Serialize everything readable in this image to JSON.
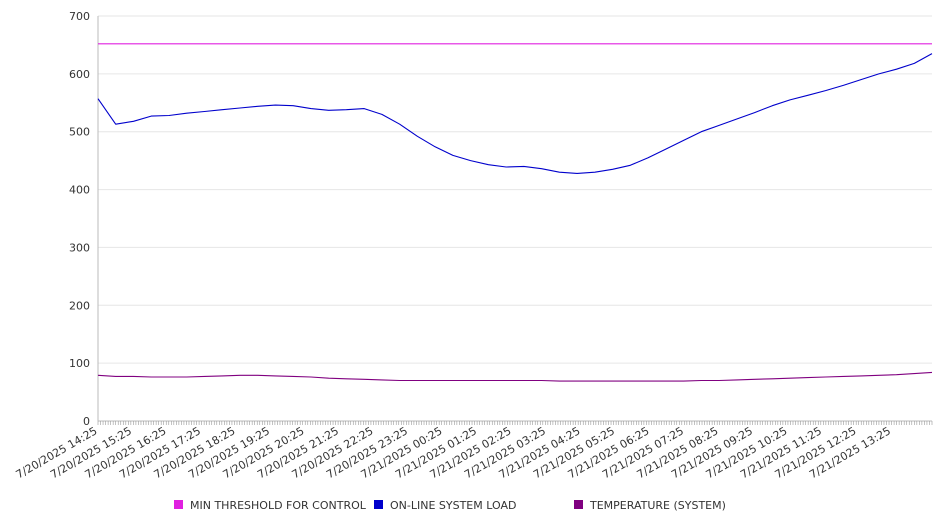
{
  "chart_data": {
    "type": "line",
    "x_ticks": [
      "7/20/2025 14:25",
      "7/20/2025 15:25",
      "7/20/2025 16:25",
      "7/20/2025 17:25",
      "7/20/2025 18:25",
      "7/20/2025 19:25",
      "7/20/2025 20:25",
      "7/20/2025 21:25",
      "7/20/2025 22:25",
      "7/20/2025 23:25",
      "7/21/2025 00:25",
      "7/21/2025 01:25",
      "7/21/2025 02:25",
      "7/21/2025 03:25",
      "7/21/2025 04:25",
      "7/21/2025 05:25",
      "7/21/2025 06:25",
      "7/21/2025 07:25",
      "7/21/2025 08:25",
      "7/21/2025 09:25",
      "7/21/2025 10:25",
      "7/21/2025 11:25",
      "7/21/2025 12:25",
      "7/21/2025 13:25"
    ],
    "y_ticks": [
      0,
      100,
      200,
      300,
      400,
      500,
      600,
      700
    ],
    "ylim": [
      0,
      700
    ],
    "grid": "horizontal",
    "legend_position": "bottom",
    "series": [
      {
        "name": "MIN THRESHOLD FOR CONTROL",
        "color": "#e020e0",
        "values": [
          652,
          652,
          652,
          652,
          652,
          652,
          652,
          652,
          652,
          652,
          652,
          652,
          652,
          652,
          652,
          652,
          652,
          652,
          652,
          652,
          652,
          652,
          652,
          652,
          652,
          652,
          652,
          652,
          652,
          652,
          652,
          652,
          652,
          652,
          652,
          652,
          652,
          652,
          652,
          652,
          652,
          652,
          652,
          652,
          652,
          652,
          652,
          652
        ]
      },
      {
        "name": "ON-LINE SYSTEM LOAD",
        "color": "#0000cc",
        "values": [
          557,
          513,
          518,
          527,
          528,
          532,
          535,
          538,
          541,
          544,
          546,
          545,
          540,
          537,
          538,
          540,
          530,
          513,
          492,
          474,
          459,
          450,
          443,
          439,
          440,
          436,
          430,
          428,
          430,
          435,
          442,
          455,
          470,
          485,
          500,
          511,
          522,
          533,
          545,
          555,
          563,
          571,
          580,
          590,
          600,
          608,
          618,
          635
        ]
      },
      {
        "name": "TEMPERATURE (SYSTEM)",
        "color": "#800080",
        "values": [
          79,
          77,
          77,
          76,
          76,
          76,
          77,
          78,
          79,
          79,
          78,
          77,
          76,
          74,
          73,
          72,
          71,
          70,
          70,
          70,
          70,
          70,
          70,
          70,
          70,
          70,
          69,
          69,
          69,
          69,
          69,
          69,
          69,
          69,
          70,
          70,
          71,
          72,
          73,
          74,
          75,
          76,
          77,
          78,
          79,
          80,
          82,
          84
        ]
      }
    ]
  }
}
